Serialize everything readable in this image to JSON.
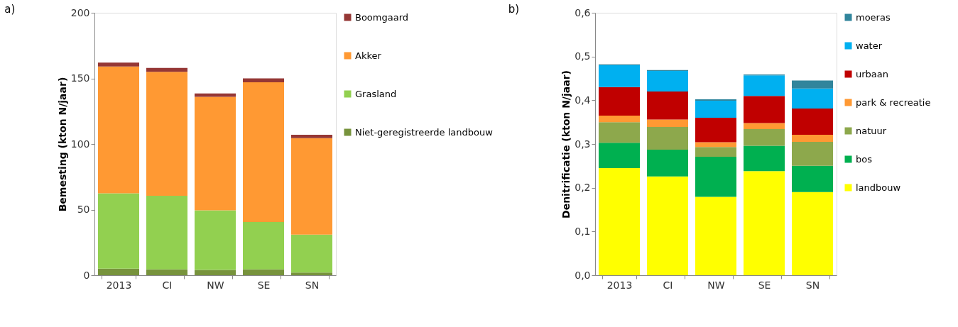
{
  "chart_data": [
    {
      "type": "bar",
      "title": "a)",
      "ylabel": "Bemesting (kton N/jaar)",
      "stacked": true,
      "legend": "right",
      "grid": false,
      "categories": [
        "2013",
        "CI",
        "NW",
        "SE",
        "SN"
      ],
      "ylim": [
        0,
        200
      ],
      "yticks": [
        0,
        50,
        100,
        150,
        200
      ],
      "series": [
        {
          "name": "Niet-geregistreerde landbouw",
          "color": "#77933c",
          "values": [
            5,
            4.5,
            4,
            4.5,
            2
          ]
        },
        {
          "name": "Grasland",
          "color": "#92d050",
          "values": [
            57.5,
            56,
            45.5,
            36,
            29
          ]
        },
        {
          "name": "Akker",
          "color": "#ff9933",
          "values": [
            96.5,
            94.5,
            86.5,
            106.5,
            73.5
          ]
        },
        {
          "name": "Boomgaard",
          "color": "#953735",
          "values": [
            3,
            3,
            2.5,
            3,
            2.5
          ]
        }
      ]
    },
    {
      "type": "bar",
      "title": "b)",
      "ylabel": "Denitrificatie (kton N/jaar)",
      "stacked": true,
      "legend": "right",
      "grid": false,
      "categories": [
        "2013",
        "CI",
        "NW",
        "SE",
        "SN"
      ],
      "ylim": [
        0,
        0.6
      ],
      "yticks": [
        {
          "value": 0,
          "label": "0,0"
        },
        {
          "value": 0.1,
          "label": "0,1"
        },
        {
          "value": 0.2,
          "label": "0,2"
        },
        {
          "value": 0.3,
          "label": "0,3"
        },
        {
          "value": 0.4,
          "label": "0,4"
        },
        {
          "value": 0.5,
          "label": "0,5"
        },
        {
          "value": 0.6,
          "label": "0,6"
        }
      ],
      "series": [
        {
          "name": "landbouw",
          "color": "#ffff00",
          "values": [
            0.245,
            0.226,
            0.179,
            0.238,
            0.19
          ]
        },
        {
          "name": "bos",
          "color": "#00b050",
          "values": [
            0.058,
            0.061,
            0.092,
            0.058,
            0.06
          ]
        },
        {
          "name": "natuur",
          "color": "#8da84c",
          "values": [
            0.047,
            0.052,
            0.022,
            0.038,
            0.055
          ]
        },
        {
          "name": "park & recreatie",
          "color": "#ff9933",
          "values": [
            0.015,
            0.017,
            0.011,
            0.014,
            0.016
          ]
        },
        {
          "name": "urbaan",
          "color": "#c00000",
          "values": [
            0.065,
            0.064,
            0.056,
            0.062,
            0.06
          ]
        },
        {
          "name": "water",
          "color": "#00b0f0",
          "values": [
            0.05,
            0.047,
            0.039,
            0.047,
            0.046
          ]
        },
        {
          "name": "moeras",
          "color": "#31859c",
          "values": [
            0.002,
            0.002,
            0.003,
            0.002,
            0.018
          ]
        }
      ]
    }
  ]
}
